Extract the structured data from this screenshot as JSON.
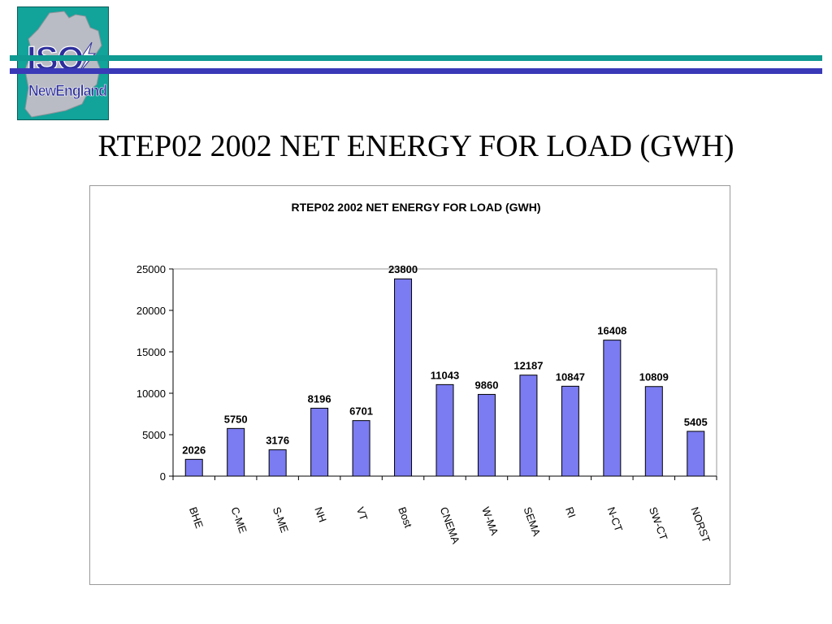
{
  "slide": {
    "title": "RTEP02 2002 NET ENERGY FOR LOAD (GWH)",
    "logo": {
      "text_top": "ISO",
      "text_bottom": "NewEngland"
    },
    "colors": {
      "stripe_teal": "#0f9a92",
      "stripe_blue": "#3a3ab8",
      "logo_bg": "#12a39a",
      "logo_map": "#b9bcc4",
      "logo_text": "#2e2f9c"
    }
  },
  "chart_data": {
    "type": "bar",
    "title": "RTEP02 2002 NET ENERGY FOR LOAD (GWH)",
    "categories": [
      "BHE",
      "C-ME",
      "S-ME",
      "NH",
      "VT",
      "Bost",
      "CNEMA",
      "W-MA",
      "SEMA",
      "RI",
      "N-CT",
      "SW-CT",
      "NORST"
    ],
    "values": [
      2026,
      5750,
      3176,
      8196,
      6701,
      23800,
      11043,
      9860,
      12187,
      10847,
      16408,
      10809,
      5405
    ],
    "data_labels": [
      "2026",
      "5750",
      "3176",
      "8196",
      "6701",
      "23800",
      "11043",
      "9860",
      "12187",
      "10847",
      "16408",
      "10809",
      "5405"
    ],
    "yticks": [
      "0",
      "5000",
      "10000",
      "15000",
      "20000",
      "25000"
    ],
    "ylim": [
      0,
      25000
    ],
    "grid": false,
    "legend": "none",
    "bar_color": "#7b7bf2",
    "bar_edge_color": "#000000"
  }
}
